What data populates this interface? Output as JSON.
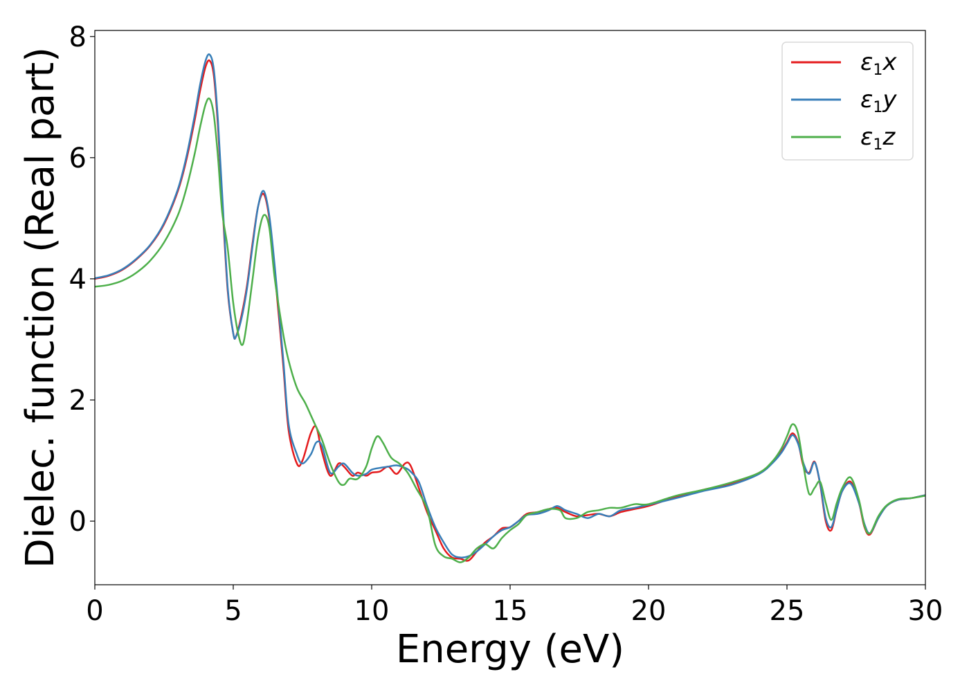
{
  "chart_data": {
    "type": "line",
    "xlabel": "Energy (eV)",
    "ylabel": "Dielec. function (Real part)",
    "xlim": [
      0,
      30
    ],
    "ylim": [
      -1.05,
      8.1
    ],
    "xticks": [
      0,
      5,
      10,
      15,
      20,
      25,
      30
    ],
    "xtick_labels": [
      "0",
      "5",
      "10",
      "15",
      "20",
      "25",
      "30"
    ],
    "yticks": [
      0,
      2,
      4,
      6,
      8
    ],
    "ytick_labels": [
      "0",
      "2",
      "4",
      "6",
      "8"
    ],
    "grid": false,
    "legend_position": "top-right",
    "series": [
      {
        "name": "ε1x",
        "legend": {
          "symbol": "ε",
          "sub": "1",
          "var": "x"
        },
        "color": "#e41a1c",
        "x": [
          0,
          0.5,
          1.0,
          1.5,
          2.0,
          2.5,
          3.0,
          3.3,
          3.6,
          3.8,
          4.0,
          4.15,
          4.3,
          4.45,
          4.6,
          4.8,
          5.0,
          5.1,
          5.3,
          5.5,
          5.7,
          5.9,
          6.1,
          6.3,
          6.5,
          6.8,
          7.0,
          7.3,
          7.5,
          7.8,
          8.0,
          8.2,
          8.5,
          8.8,
          9.0,
          9.3,
          9.5,
          9.8,
          10.0,
          10.3,
          10.6,
          10.9,
          11.2,
          11.4,
          11.7,
          12.0,
          12.3,
          12.6,
          12.9,
          13.2,
          13.5,
          13.8,
          14.1,
          14.4,
          14.7,
          15.0,
          15.3,
          15.6,
          16.0,
          16.4,
          16.7,
          17.0,
          17.4,
          17.8,
          18.2,
          18.6,
          19.0,
          19.5,
          20.0,
          21.0,
          22.0,
          23.0,
          24.0,
          24.5,
          24.8,
          25.0,
          25.2,
          25.4,
          25.6,
          25.8,
          26.0,
          26.2,
          26.4,
          26.6,
          26.8,
          27.0,
          27.3,
          27.6,
          27.8,
          28.0,
          28.3,
          28.6,
          29.0,
          29.5,
          30.0
        ],
        "values": [
          4.0,
          4.05,
          4.15,
          4.32,
          4.55,
          4.9,
          5.45,
          5.95,
          6.6,
          7.1,
          7.5,
          7.6,
          7.35,
          6.5,
          5.3,
          3.8,
          3.1,
          3.05,
          3.4,
          3.9,
          4.6,
          5.2,
          5.4,
          5.0,
          4.1,
          2.6,
          1.5,
          0.95,
          1.0,
          1.45,
          1.55,
          1.15,
          0.75,
          0.95,
          0.9,
          0.75,
          0.8,
          0.75,
          0.8,
          0.82,
          0.9,
          0.78,
          0.95,
          0.92,
          0.55,
          0.15,
          -0.15,
          -0.45,
          -0.6,
          -0.62,
          -0.65,
          -0.5,
          -0.35,
          -0.25,
          -0.12,
          -0.1,
          0.0,
          0.12,
          0.15,
          0.2,
          0.22,
          0.15,
          0.08,
          0.1,
          0.12,
          0.08,
          0.15,
          0.2,
          0.25,
          0.4,
          0.52,
          0.62,
          0.8,
          0.98,
          1.15,
          1.3,
          1.45,
          1.3,
          0.9,
          0.8,
          0.98,
          0.6,
          0.0,
          -0.15,
          0.2,
          0.5,
          0.65,
          0.3,
          -0.1,
          -0.22,
          0.05,
          0.25,
          0.35,
          0.38,
          0.43
        ]
      },
      {
        "name": "ε1y",
        "legend": {
          "symbol": "ε",
          "sub": "1",
          "var": "y"
        },
        "color": "#377eb8",
        "x": [
          0,
          0.5,
          1.0,
          1.5,
          2.0,
          2.5,
          3.0,
          3.3,
          3.6,
          3.8,
          4.0,
          4.15,
          4.3,
          4.45,
          4.6,
          4.8,
          5.0,
          5.1,
          5.3,
          5.5,
          5.7,
          5.9,
          6.1,
          6.3,
          6.5,
          6.8,
          7.0,
          7.3,
          7.5,
          7.8,
          8.0,
          8.2,
          8.5,
          8.8,
          9.0,
          9.3,
          9.5,
          9.8,
          10.0,
          10.3,
          10.6,
          10.9,
          11.2,
          11.4,
          11.7,
          12.0,
          12.3,
          12.6,
          12.9,
          13.2,
          13.5,
          13.8,
          14.1,
          14.4,
          14.7,
          15.0,
          15.3,
          15.6,
          16.0,
          16.4,
          16.7,
          17.0,
          17.4,
          17.8,
          18.2,
          18.6,
          19.0,
          19.5,
          20.0,
          21.0,
          22.0,
          23.0,
          24.0,
          24.5,
          24.8,
          25.0,
          25.2,
          25.4,
          25.6,
          25.8,
          26.0,
          26.2,
          26.4,
          26.6,
          26.8,
          27.0,
          27.3,
          27.6,
          27.8,
          28.0,
          28.3,
          28.6,
          29.0,
          29.5,
          30.0
        ],
        "values": [
          4.01,
          4.06,
          4.16,
          4.33,
          4.56,
          4.92,
          5.48,
          6.0,
          6.68,
          7.2,
          7.6,
          7.7,
          7.45,
          6.6,
          5.4,
          3.85,
          3.1,
          3.05,
          3.35,
          3.85,
          4.55,
          5.2,
          5.45,
          5.05,
          4.2,
          2.7,
          1.6,
          1.1,
          0.95,
          1.1,
          1.3,
          1.25,
          0.8,
          0.9,
          0.95,
          0.8,
          0.75,
          0.78,
          0.85,
          0.88,
          0.9,
          0.92,
          0.88,
          0.82,
          0.65,
          0.25,
          -0.1,
          -0.35,
          -0.55,
          -0.6,
          -0.58,
          -0.5,
          -0.38,
          -0.25,
          -0.15,
          -0.1,
          0.0,
          0.1,
          0.12,
          0.18,
          0.25,
          0.18,
          0.12,
          0.05,
          0.12,
          0.08,
          0.18,
          0.22,
          0.27,
          0.38,
          0.5,
          0.6,
          0.78,
          0.97,
          1.13,
          1.28,
          1.42,
          1.28,
          0.95,
          0.78,
          0.97,
          0.62,
          0.05,
          -0.1,
          0.2,
          0.5,
          0.62,
          0.3,
          -0.05,
          -0.2,
          0.05,
          0.25,
          0.35,
          0.38,
          0.43
        ]
      },
      {
        "name": "ε1z",
        "legend": {
          "symbol": "ε",
          "sub": "1",
          "var": "z"
        },
        "color": "#4daf4a",
        "x": [
          0,
          0.5,
          1.0,
          1.5,
          2.0,
          2.5,
          3.0,
          3.3,
          3.6,
          3.8,
          4.0,
          4.15,
          4.3,
          4.45,
          4.6,
          4.8,
          5.0,
          5.2,
          5.35,
          5.5,
          5.7,
          5.9,
          6.1,
          6.3,
          6.5,
          6.8,
          7.0,
          7.3,
          7.6,
          7.8,
          8.0,
          8.2,
          8.5,
          8.8,
          9.0,
          9.2,
          9.5,
          9.8,
          10.0,
          10.2,
          10.4,
          10.7,
          11.0,
          11.3,
          11.6,
          12.0,
          12.3,
          12.6,
          12.9,
          13.2,
          13.5,
          13.8,
          14.1,
          14.4,
          14.7,
          15.0,
          15.3,
          15.6,
          16.0,
          16.4,
          16.8,
          17.0,
          17.4,
          17.8,
          18.2,
          18.6,
          19.0,
          19.5,
          20.0,
          21.0,
          22.0,
          23.0,
          24.0,
          24.5,
          24.8,
          25.0,
          25.2,
          25.4,
          25.6,
          25.8,
          26.0,
          26.2,
          26.4,
          26.6,
          26.8,
          27.0,
          27.3,
          27.6,
          27.8,
          28.0,
          28.3,
          28.6,
          29.0,
          29.5,
          30.0
        ],
        "values": [
          3.87,
          3.9,
          3.97,
          4.1,
          4.3,
          4.6,
          5.05,
          5.48,
          6.05,
          6.5,
          6.88,
          6.97,
          6.7,
          6.0,
          5.1,
          4.5,
          3.6,
          3.05,
          2.92,
          3.3,
          4.0,
          4.7,
          5.05,
          4.85,
          4.0,
          3.1,
          2.65,
          2.2,
          1.95,
          1.75,
          1.55,
          1.35,
          0.95,
          0.65,
          0.6,
          0.7,
          0.7,
          0.9,
          1.2,
          1.4,
          1.3,
          1.05,
          0.95,
          0.8,
          0.55,
          0.2,
          -0.4,
          -0.58,
          -0.62,
          -0.68,
          -0.6,
          -0.45,
          -0.38,
          -0.45,
          -0.28,
          -0.15,
          -0.05,
          0.1,
          0.15,
          0.2,
          0.18,
          0.05,
          0.05,
          0.15,
          0.18,
          0.22,
          0.22,
          0.28,
          0.28,
          0.42,
          0.52,
          0.64,
          0.8,
          1.0,
          1.2,
          1.4,
          1.6,
          1.45,
          0.9,
          0.45,
          0.55,
          0.65,
          0.3,
          0.02,
          0.3,
          0.55,
          0.72,
          0.35,
          -0.08,
          -0.2,
          0.08,
          0.26,
          0.36,
          0.38,
          0.42
        ]
      }
    ]
  }
}
